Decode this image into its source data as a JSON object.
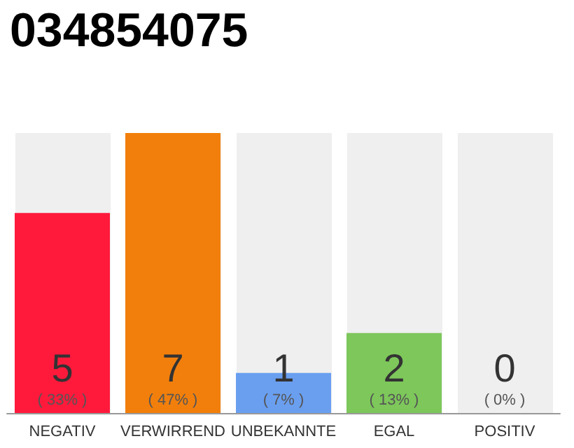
{
  "chart_data": {
    "type": "bar",
    "title": "034854075",
    "categories": [
      "NEGATIV",
      "VERWIRREND",
      "UNBEKANNTE",
      "EGAL",
      "POSITIV"
    ],
    "values": [
      5,
      7,
      1,
      2,
      0
    ],
    "colors": [
      "#ff1a3c",
      "#f27f0c",
      "#6a9ff0",
      "#7dc75b",
      "#cfcfcf"
    ],
    "value_labels": [
      "5\n( 33% )",
      "7\n( 47% )",
      "1\n( 7% )",
      "2\n( 13% )",
      "0\n( 0% )"
    ],
    "grid": false
  }
}
